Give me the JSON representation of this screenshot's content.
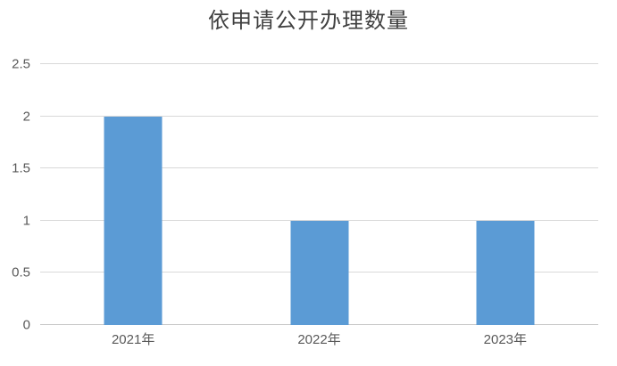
{
  "chart_data": {
    "type": "bar",
    "title": "依申请公开办理数量",
    "categories": [
      "2021年",
      "2022年",
      "2023年"
    ],
    "values": [
      2,
      1,
      1
    ],
    "xlabel": "",
    "ylabel": "",
    "ylim": [
      0,
      2.5
    ],
    "yticks": [
      0,
      0.5,
      1,
      1.5,
      2,
      2.5
    ],
    "ytick_labels": [
      "0",
      "0.5",
      "1",
      "1.5",
      "2",
      "2.5"
    ],
    "grid": "horizontal",
    "legend": "none",
    "colors": {
      "bar": "#5B9BD5",
      "gridline": "#D9D9D9",
      "axis_line": "#C6C6C6",
      "title_text": "#404040",
      "tick_text": "#595959",
      "background": "#FFFFFF"
    }
  }
}
